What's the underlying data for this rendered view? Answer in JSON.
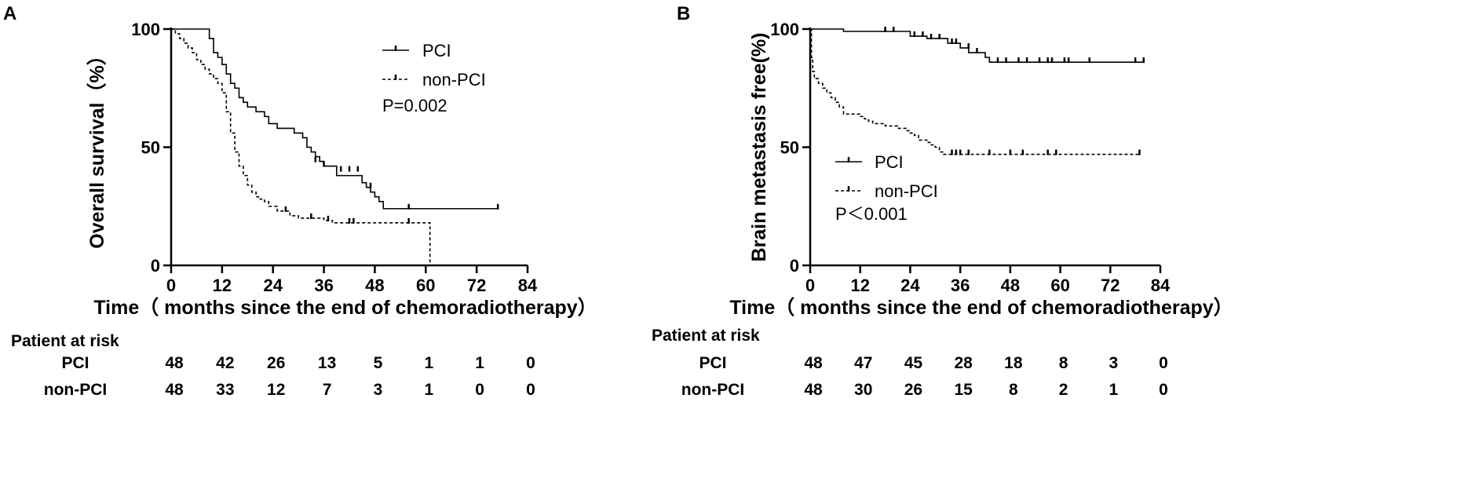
{
  "chart_data": [
    {
      "panel": "A",
      "type": "line",
      "subtype": "kaplan-meier",
      "xlabel": "Time（ months since the end of chemoradiotherapy）",
      "ylabel": "Overall survival（%）",
      "xlim": [
        0,
        84
      ],
      "ylim": [
        0,
        100
      ],
      "xticks": [
        0,
        12,
        24,
        36,
        48,
        60,
        72,
        84
      ],
      "yticks": [
        0,
        50,
        100
      ],
      "legend": [
        "PCI",
        "non-PCI"
      ],
      "legend_placement": "top-right",
      "annotation": "P=0.002",
      "series": [
        {
          "name": "PCI",
          "style": "solid",
          "steps": [
            [
              0,
              100
            ],
            [
              8,
              100
            ],
            [
              9,
              96
            ],
            [
              10,
              90
            ],
            [
              11,
              88
            ],
            [
              12,
              85
            ],
            [
              13,
              81
            ],
            [
              14,
              77
            ],
            [
              15,
              75
            ],
            [
              16,
              71
            ],
            [
              17,
              69
            ],
            [
              18,
              67
            ],
            [
              20,
              65
            ],
            [
              22,
              63
            ],
            [
              23,
              60
            ],
            [
              25,
              58
            ],
            [
              29,
              56
            ],
            [
              31,
              54
            ],
            [
              32,
              50
            ],
            [
              33,
              48
            ],
            [
              34,
              46
            ],
            [
              35,
              44
            ],
            [
              36,
              42
            ],
            [
              39,
              38
            ],
            [
              45,
              35
            ],
            [
              46,
              33
            ],
            [
              47,
              31
            ],
            [
              48,
              29
            ],
            [
              49,
              27
            ],
            [
              50,
              24
            ],
            [
              77,
              24
            ]
          ],
          "censored": [
            [
              34,
              44
            ],
            [
              36,
              42
            ],
            [
              40,
              40
            ],
            [
              42,
              40
            ],
            [
              44,
              40
            ],
            [
              47,
              33
            ],
            [
              56,
              24
            ],
            [
              77,
              24
            ]
          ]
        },
        {
          "name": "non-PCI",
          "style": "dashed",
          "steps": [
            [
              0,
              100
            ],
            [
              1,
              98
            ],
            [
              2,
              96
            ],
            [
              3,
              94
            ],
            [
              4,
              92
            ],
            [
              5,
              90
            ],
            [
              6,
              87
            ],
            [
              7,
              85
            ],
            [
              8,
              83
            ],
            [
              9,
              81
            ],
            [
              10,
              79
            ],
            [
              11,
              77
            ],
            [
              12,
              73
            ],
            [
              13,
              65
            ],
            [
              14,
              56
            ],
            [
              15,
              48
            ],
            [
              16,
              42
            ],
            [
              17,
              38
            ],
            [
              18,
              34
            ],
            [
              19,
              31
            ],
            [
              20,
              29
            ],
            [
              21,
              28
            ],
            [
              22,
              27
            ],
            [
              23,
              25
            ],
            [
              25,
              23
            ],
            [
              28,
              21
            ],
            [
              30,
              20
            ],
            [
              36,
              19
            ],
            [
              38,
              18
            ],
            [
              61,
              18
            ],
            [
              61,
              0
            ]
          ],
          "censored": [
            [
              27,
              23
            ],
            [
              33,
              20
            ],
            [
              37,
              19
            ],
            [
              42,
              18
            ],
            [
              43,
              18
            ],
            [
              56,
              18
            ]
          ]
        }
      ],
      "at_risk": {
        "header": "Patient at risk",
        "rows": [
          {
            "label": "PCI",
            "values": [
              "48",
              "42",
              "26",
              "13",
              "5",
              "1",
              "1",
              "0"
            ]
          },
          {
            "label": "non-PCI",
            "values": [
              "48",
              "33",
              "12",
              "7",
              "3",
              "1",
              "0",
              "0"
            ]
          }
        ]
      }
    },
    {
      "panel": "B",
      "type": "line",
      "subtype": "kaplan-meier",
      "xlabel": "Time（ months since the end of chemoradiotherapy）",
      "ylabel": "Brain metastasis free(%)",
      "xlim": [
        0,
        84
      ],
      "ylim": [
        0,
        100
      ],
      "xticks": [
        0,
        12,
        24,
        36,
        48,
        60,
        72,
        84
      ],
      "yticks": [
        0,
        50,
        100
      ],
      "legend": [
        "PCI",
        "non-PCI"
      ],
      "legend_placement": "middle-left",
      "annotation": "P＜0.001",
      "series": [
        {
          "name": "PCI",
          "style": "solid",
          "steps": [
            [
              0,
              100
            ],
            [
              8,
              99
            ],
            [
              24,
              97
            ],
            [
              28,
              96
            ],
            [
              33,
              94
            ],
            [
              36,
              92
            ],
            [
              38,
              90
            ],
            [
              42,
              88
            ],
            [
              43,
              86
            ],
            [
              80,
              86
            ]
          ],
          "censored": [
            [
              18,
              99
            ],
            [
              20,
              99
            ],
            [
              25,
              97
            ],
            [
              27,
              97
            ],
            [
              29,
              96
            ],
            [
              31,
              96
            ],
            [
              34,
              94
            ],
            [
              35,
              94
            ],
            [
              38,
              92
            ],
            [
              40,
              90
            ],
            [
              45,
              86
            ],
            [
              47,
              86
            ],
            [
              50,
              86
            ],
            [
              52,
              86
            ],
            [
              55,
              86
            ],
            [
              57,
              86
            ],
            [
              58,
              86
            ],
            [
              61,
              86
            ],
            [
              62,
              86
            ],
            [
              67,
              86
            ],
            [
              78,
              86
            ],
            [
              80,
              86
            ]
          ]
        },
        {
          "name": "non-PCI",
          "style": "dashed",
          "steps": [
            [
              0,
              100
            ],
            [
              0.3,
              88
            ],
            [
              0.6,
              82
            ],
            [
              1,
              79
            ],
            [
              2,
              77
            ],
            [
              3,
              75
            ],
            [
              4,
              73
            ],
            [
              5,
              71
            ],
            [
              6,
              69
            ],
            [
              7,
              67
            ],
            [
              8,
              64
            ],
            [
              12,
              63
            ],
            [
              13,
              62
            ],
            [
              14,
              61
            ],
            [
              15,
              60
            ],
            [
              18,
              59
            ],
            [
              21,
              58
            ],
            [
              23,
              57
            ],
            [
              24,
              56
            ],
            [
              25,
              55
            ],
            [
              26,
              53
            ],
            [
              28,
              52
            ],
            [
              29,
              51
            ],
            [
              30,
              50
            ],
            [
              31,
              48
            ],
            [
              32,
              47
            ],
            [
              79,
              47
            ]
          ],
          "censored": [
            [
              34,
              47
            ],
            [
              35,
              47
            ],
            [
              36,
              47
            ],
            [
              38,
              47
            ],
            [
              43,
              47
            ],
            [
              48,
              47
            ],
            [
              51,
              47
            ],
            [
              57,
              47
            ],
            [
              59,
              47
            ],
            [
              79,
              47
            ]
          ]
        }
      ],
      "at_risk": {
        "header": "Patient at risk",
        "rows": [
          {
            "label": "PCI",
            "values": [
              "48",
              "47",
              "45",
              "28",
              "18",
              "8",
              "3",
              "0"
            ]
          },
          {
            "label": "non-PCI",
            "values": [
              "48",
              "30",
              "26",
              "15",
              "8",
              "2",
              "1",
              "0"
            ]
          }
        ]
      }
    }
  ]
}
